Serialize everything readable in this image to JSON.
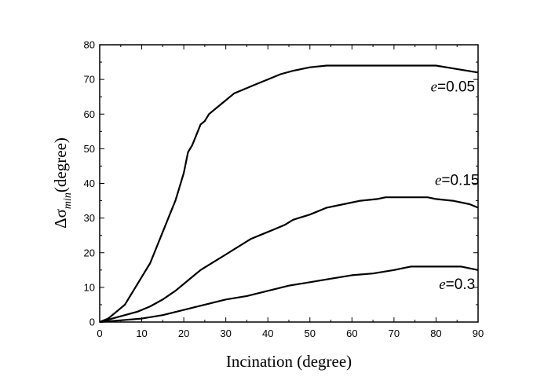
{
  "chart_data": {
    "type": "line",
    "title": "",
    "xlabel": "Incination (degree)",
    "ylabel": {
      "prefix": "Δσ",
      "subscript": "min",
      "suffix": "(degree)"
    },
    "xlim": [
      0,
      90
    ],
    "ylim": [
      0,
      80
    ],
    "xticks": [
      0,
      10,
      20,
      30,
      40,
      50,
      60,
      70,
      80,
      90
    ],
    "yticks": [
      0,
      10,
      20,
      30,
      40,
      50,
      60,
      70,
      80
    ],
    "grid": false,
    "legend": "inline labels",
    "series": [
      {
        "name": "e=0.05",
        "label": {
          "var": "e",
          "value": "=0.05"
        },
        "x": [
          0,
          2,
          4,
          6,
          8,
          10,
          12,
          14,
          15,
          16,
          17,
          18,
          19,
          20,
          21,
          22,
          23,
          24,
          25,
          26,
          28,
          30,
          32,
          34,
          36,
          38,
          40,
          43,
          46,
          50,
          54,
          60,
          70,
          80,
          85,
          90
        ],
        "y": [
          0,
          1,
          3,
          5,
          9,
          13,
          17,
          23,
          26,
          29,
          32,
          35,
          39,
          43,
          49,
          51,
          54,
          57,
          58,
          60,
          62,
          64,
          66,
          67,
          68,
          69,
          70,
          71.5,
          72.5,
          73.5,
          74,
          74,
          74,
          74,
          73,
          72
        ]
      },
      {
        "name": "e=0.15",
        "label": {
          "var": "e",
          "value": "=0.15"
        },
        "x": [
          0,
          3,
          6,
          9,
          12,
          15,
          18,
          20,
          22,
          24,
          26,
          28,
          30,
          32,
          34,
          36,
          38,
          40,
          42,
          44,
          46,
          50,
          54,
          58,
          62,
          66,
          68,
          70,
          74,
          78,
          80,
          84,
          88,
          90
        ],
        "y": [
          0,
          1,
          2,
          3,
          4.5,
          6.5,
          9,
          11,
          13,
          15,
          16.5,
          18,
          19.5,
          21,
          22.5,
          24,
          25,
          26,
          27,
          28,
          29.5,
          31,
          33,
          34,
          35,
          35.5,
          36,
          36,
          36,
          36,
          35.5,
          35,
          34,
          33
        ]
      },
      {
        "name": "e=0.3",
        "label": {
          "var": "e",
          "value": "=0.3"
        },
        "x": [
          0,
          5,
          10,
          15,
          20,
          25,
          30,
          35,
          40,
          45,
          50,
          55,
          60,
          65,
          70,
          74,
          80,
          86,
          90
        ],
        "y": [
          0,
          0.5,
          1,
          2,
          3.5,
          5,
          6.5,
          7.5,
          9,
          10.5,
          11.5,
          12.5,
          13.5,
          14,
          15,
          16,
          16,
          16,
          15
        ]
      }
    ]
  }
}
